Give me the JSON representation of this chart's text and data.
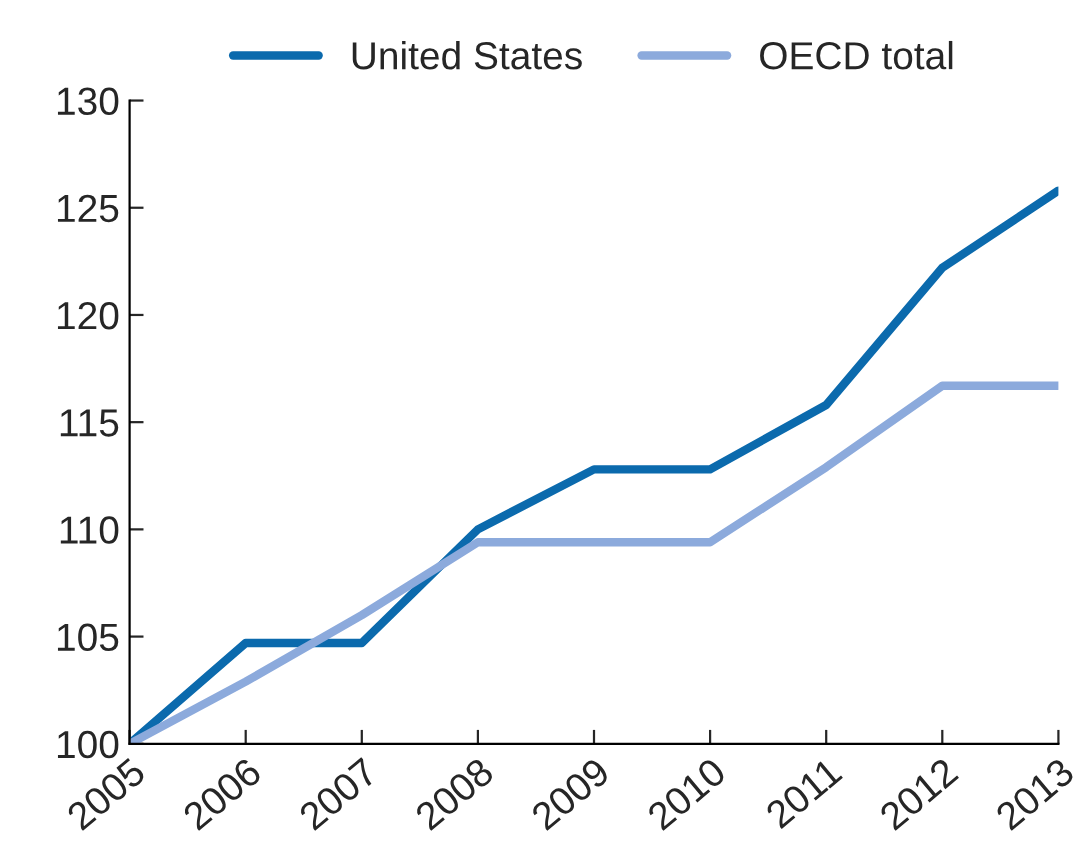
{
  "chart_data": {
    "type": "line",
    "categories": [
      "2005",
      "2006",
      "2007",
      "2008",
      "2009",
      "2010",
      "2011",
      "2012",
      "2013"
    ],
    "series": [
      {
        "name": "United States",
        "color": "#0b6aad",
        "values": [
          100,
          104.7,
          104.7,
          110,
          112.8,
          112.8,
          115.8,
          122.2,
          125.8
        ]
      },
      {
        "name": "OECD total",
        "color": "#8caadc",
        "values": [
          100,
          102.9,
          106,
          109.4,
          109.4,
          109.4,
          112.9,
          116.7,
          116.7
        ]
      }
    ],
    "ylim": [
      100,
      130
    ],
    "yticks": [
      100,
      105,
      110,
      115,
      120,
      125,
      130
    ],
    "legend": "top",
    "grid": false,
    "marker": "none",
    "line_style": "solid"
  }
}
